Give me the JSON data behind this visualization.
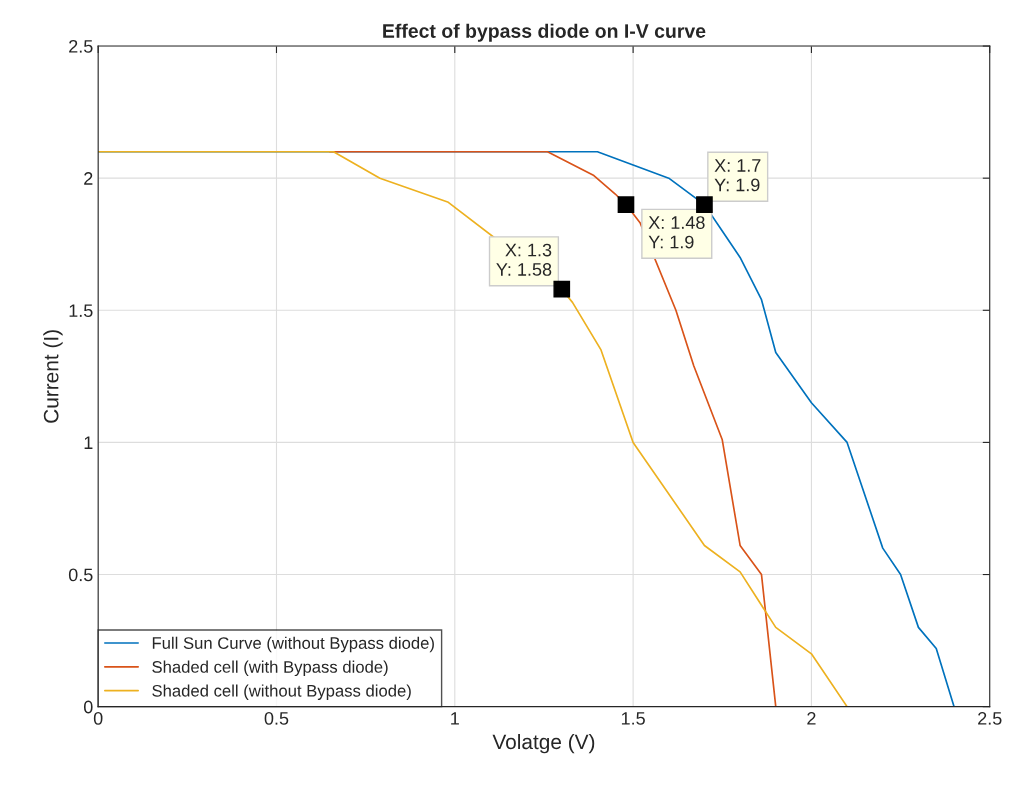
{
  "chart_data": {
    "type": "line",
    "title": "Effect of bypass diode on I-V curve",
    "xlabel": "Volatge (V)",
    "ylabel": "Current (I)",
    "xlim": [
      0,
      2.5
    ],
    "ylim": [
      0,
      2.5
    ],
    "xticks": [
      0,
      0.5,
      1,
      1.5,
      2,
      2.5
    ],
    "yticks": [
      0,
      0.5,
      1,
      1.5,
      2,
      2.5
    ],
    "grid": true,
    "legend": "bottom left",
    "series": [
      {
        "name": "Full Sun Curve (without Bypass diode)",
        "color": "#0072bd",
        "x": [
          0,
          1.4,
          1.5,
          1.6,
          1.65,
          1.7,
          1.75,
          1.8,
          1.86,
          1.9,
          2.0,
          2.1,
          2.2,
          2.25,
          2.3,
          2.35,
          2.4
        ],
        "values": [
          2.1,
          2.1,
          2.05,
          2.0,
          1.95,
          1.9,
          1.8,
          1.7,
          1.54,
          1.34,
          1.15,
          1.0,
          0.6,
          0.5,
          0.3,
          0.22,
          0
        ]
      },
      {
        "name": "Shaded cell (with Bypass diode)",
        "color": "#d95319",
        "x": [
          0.65,
          1.26,
          1.39,
          1.45,
          1.48,
          1.52,
          1.62,
          1.67,
          1.75,
          1.8,
          1.86,
          1.9
        ],
        "values": [
          2.1,
          2.1,
          2.01,
          1.94,
          1.9,
          1.83,
          1.5,
          1.29,
          1.01,
          0.61,
          0.5,
          0
        ]
      },
      {
        "name": "Shaded cell (without Bypass diode)",
        "color": "#edb120",
        "x": [
          0,
          0.66,
          0.79,
          0.98,
          1.3,
          1.33,
          1.41,
          1.5,
          1.7,
          1.8,
          1.9,
          2.0,
          2.1
        ],
        "values": [
          2.1,
          2.1,
          2.0,
          1.91,
          1.58,
          1.53,
          1.35,
          1.0,
          0.61,
          0.51,
          0.3,
          0.2,
          0
        ]
      }
    ],
    "annotations": [
      {
        "text": "X: 1.3\nY: 1.58",
        "x": 1.3,
        "y": 1.58
      },
      {
        "text": "X: 1.48\nY: 1.9",
        "x": 1.48,
        "y": 1.9
      },
      {
        "text": "X: 1.7\nY: 1.9",
        "x": 1.7,
        "y": 1.9
      }
    ]
  }
}
